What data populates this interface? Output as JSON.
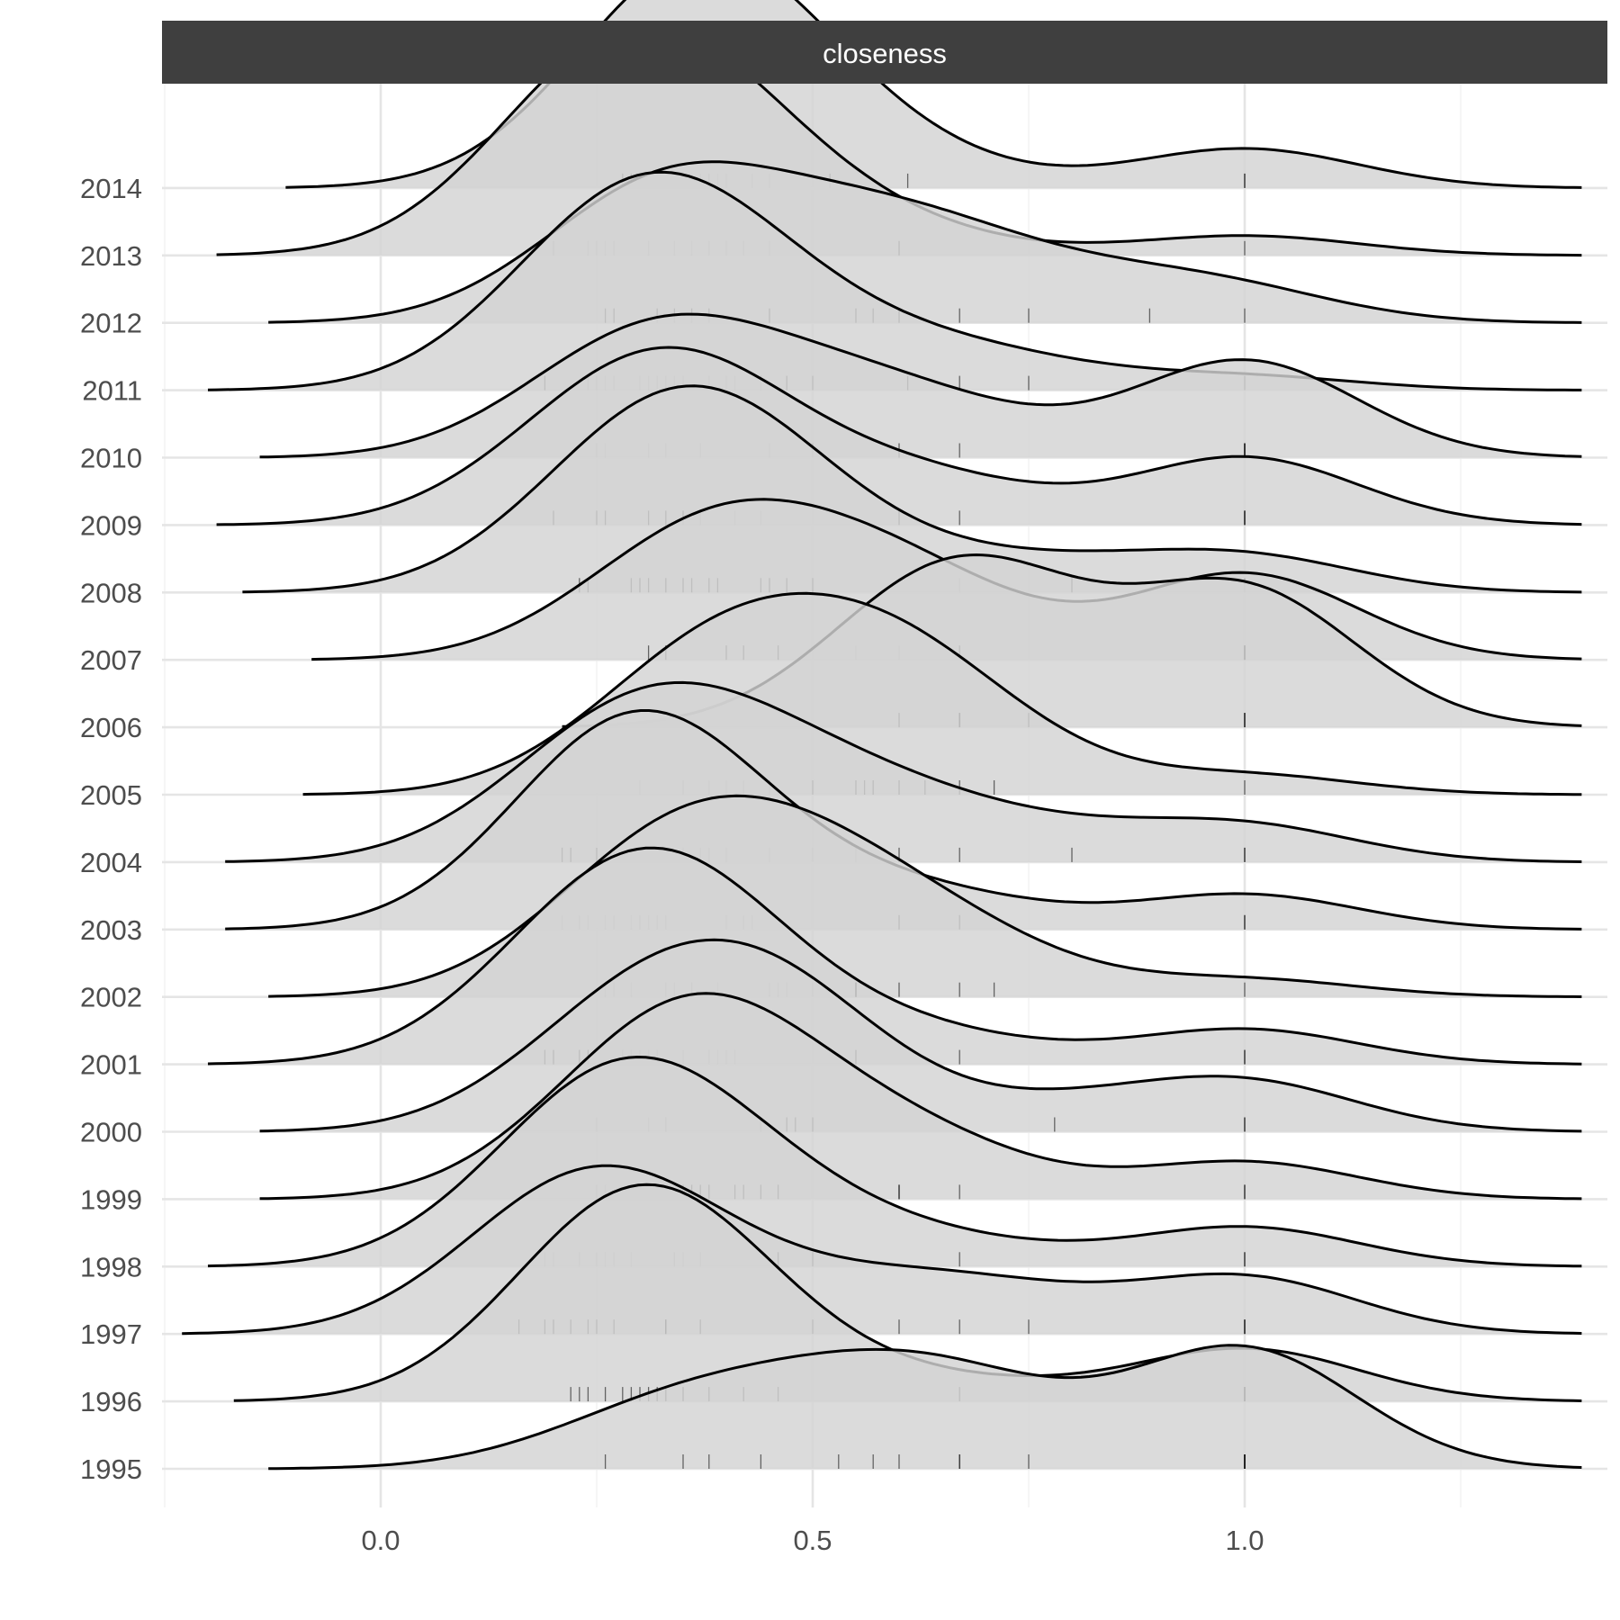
{
  "chart_data": {
    "type": "ridgeline",
    "facet_title": "closeness",
    "xlabel": "",
    "ylabel": "",
    "x_ticks": [
      0.0,
      0.5,
      1.0
    ],
    "x_tick_labels": [
      "0.0",
      "0.5",
      "1.0"
    ],
    "xlim": [
      -0.25,
      1.38
    ],
    "grid": true,
    "rug": true,
    "series": [
      {
        "name": "1995",
        "points": [
          0.26,
          0.35,
          0.38,
          0.44,
          0.53,
          0.57,
          0.6,
          0.67,
          0.67,
          0.75,
          1.0,
          1.0,
          1.0,
          1.0,
          1.0,
          1.0
        ]
      },
      {
        "name": "1996",
        "points": [
          0.22,
          0.23,
          0.24,
          0.26,
          0.28,
          0.29,
          0.3,
          0.31,
          0.32,
          0.33,
          0.35,
          0.38,
          0.42,
          0.46,
          0.67,
          1.0,
          1.0,
          1.0
        ]
      },
      {
        "name": "1997",
        "points": [
          0.16,
          0.19,
          0.2,
          0.22,
          0.24,
          0.25,
          0.27,
          0.33,
          0.33,
          0.37,
          0.5,
          0.6,
          0.67,
          0.75,
          1.0,
          1.0,
          1.0
        ]
      },
      {
        "name": "1998",
        "points": [
          0.19,
          0.2,
          0.23,
          0.25,
          0.26,
          0.27,
          0.29,
          0.34,
          0.34,
          0.35,
          0.37,
          0.46,
          0.5,
          0.67,
          1.0,
          1.0
        ]
      },
      {
        "name": "1999",
        "points": [
          0.25,
          0.26,
          0.29,
          0.32,
          0.35,
          0.36,
          0.37,
          0.38,
          0.41,
          0.42,
          0.44,
          0.46,
          0.6,
          0.6,
          0.67,
          1.0,
          1.0
        ]
      },
      {
        "name": "2000",
        "points": [
          0.25,
          0.25,
          0.31,
          0.33,
          0.33,
          0.44,
          0.44,
          0.47,
          0.48,
          0.5,
          0.78,
          1.0,
          1.0
        ]
      },
      {
        "name": "2001",
        "points": [
          0.19,
          0.2,
          0.23,
          0.24,
          0.28,
          0.29,
          0.3,
          0.31,
          0.32,
          0.35,
          0.38,
          0.39,
          0.4,
          0.41,
          0.55,
          0.67,
          1.0,
          1.0
        ]
      },
      {
        "name": "2002",
        "points": [
          0.26,
          0.27,
          0.29,
          0.33,
          0.34,
          0.36,
          0.36,
          0.39,
          0.45,
          0.46,
          0.47,
          0.5,
          0.55,
          0.55,
          0.6,
          0.67,
          0.71,
          1.0
        ]
      },
      {
        "name": "2003",
        "points": [
          0.21,
          0.23,
          0.24,
          0.26,
          0.27,
          0.29,
          0.3,
          0.3,
          0.31,
          0.32,
          0.33,
          0.4,
          0.42,
          0.43,
          0.6,
          0.67,
          1.0,
          1.0
        ]
      },
      {
        "name": "2004",
        "points": [
          0.21,
          0.22,
          0.25,
          0.27,
          0.29,
          0.32,
          0.35,
          0.37,
          0.38,
          0.4,
          0.45,
          0.5,
          0.55,
          0.6,
          0.67,
          0.8,
          1.0,
          1.0
        ]
      },
      {
        "name": "2005",
        "points": [
          0.3,
          0.35,
          0.35,
          0.38,
          0.4,
          0.42,
          0.45,
          0.5,
          0.55,
          0.56,
          0.57,
          0.6,
          0.63,
          0.67,
          0.71,
          1.0
        ]
      },
      {
        "name": "2006",
        "points": [
          0.6,
          0.67,
          0.67,
          0.75,
          1.0,
          1.0,
          1.0
        ]
      },
      {
        "name": "2007",
        "points": [
          0.31,
          0.33,
          0.4,
          0.42,
          0.46,
          0.55,
          0.6,
          0.67,
          1.0,
          1.0,
          1.0
        ]
      },
      {
        "name": "2008",
        "points": [
          0.23,
          0.24,
          0.29,
          0.3,
          0.31,
          0.33,
          0.35,
          0.36,
          0.38,
          0.39,
          0.44,
          0.45,
          0.47,
          0.5,
          0.67,
          0.8,
          1.0,
          1.0
        ]
      },
      {
        "name": "2009",
        "points": [
          0.2,
          0.25,
          0.26,
          0.31,
          0.33,
          0.35,
          0.37,
          0.41,
          0.44,
          0.6,
          0.67,
          1.0,
          1.0,
          1.0
        ]
      },
      {
        "name": "2010",
        "points": [
          0.25,
          0.26,
          0.31,
          0.33,
          0.37,
          0.45,
          0.5,
          0.6,
          0.67,
          1.0,
          1.0,
          1.0,
          1.0
        ]
      },
      {
        "name": "2011",
        "points": [
          0.19,
          0.24,
          0.24,
          0.25,
          0.25,
          0.26,
          0.27,
          0.3,
          0.31,
          0.32,
          0.33,
          0.34,
          0.35,
          0.38,
          0.4,
          0.41,
          0.44,
          0.47,
          0.5,
          0.61,
          0.67,
          0.75,
          1.0
        ]
      },
      {
        "name": "2012",
        "points": [
          0.26,
          0.27,
          0.32,
          0.34,
          0.36,
          0.38,
          0.45,
          0.55,
          0.57,
          0.6,
          0.67,
          0.75,
          0.89,
          1.0
        ]
      },
      {
        "name": "2013",
        "points": [
          0.2,
          0.2,
          0.24,
          0.25,
          0.25,
          0.26,
          0.27,
          0.31,
          0.34,
          0.36,
          0.38,
          0.4,
          0.42,
          0.45,
          0.6,
          1.0
        ]
      },
      {
        "name": "2014",
        "points": [
          0.28,
          0.29,
          0.31,
          0.35,
          0.36,
          0.37,
          0.38,
          0.38,
          0.39,
          0.4,
          0.43,
          0.45,
          0.52,
          0.61,
          1.0,
          1.0
        ]
      }
    ]
  }
}
